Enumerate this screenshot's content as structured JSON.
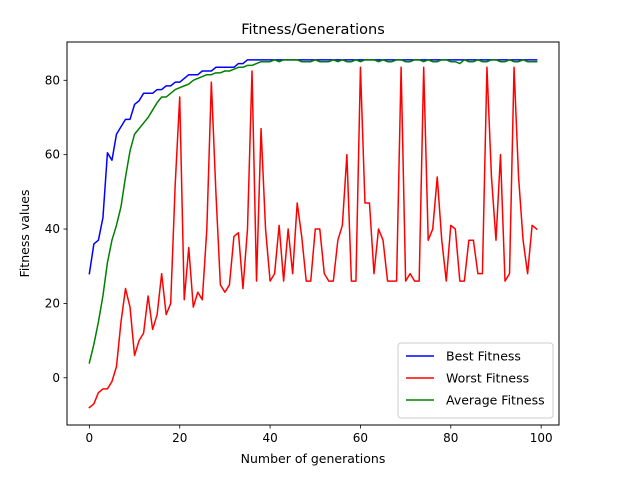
{
  "chart_data": {
    "type": "line",
    "title": "Fitness/Generations",
    "xlabel": "Number of generations",
    "ylabel": "Fitness values",
    "xlim": [
      -4.95,
      103.95
    ],
    "ylim": [
      -12.7,
      90.3
    ],
    "xticks": [
      0,
      20,
      40,
      60,
      80,
      100
    ],
    "yticks": [
      0,
      20,
      40,
      60,
      80
    ],
    "grid": false,
    "legend": "lower-right",
    "series": [
      {
        "name": "Best Fitness",
        "color": "#0000ff",
        "values": [
          28,
          36,
          37,
          43,
          60.5,
          58.5,
          65.5,
          67.5,
          69.5,
          69.5,
          73.5,
          74.5,
          76.5,
          76.5,
          76.5,
          77.5,
          77.5,
          78.5,
          78.5,
          79.5,
          79.5,
          80.5,
          81.5,
          81.5,
          81.5,
          82.5,
          82.5,
          82.5,
          83.5,
          83.5,
          83.5,
          83.5,
          83.5,
          84.5,
          84.5,
          85.5,
          85.5,
          85.5,
          85.5,
          85.5,
          85.5,
          85.5,
          85.5,
          85.5,
          85.5,
          85.5,
          85.5,
          85.5,
          85.5,
          85.5,
          85.5,
          85.5,
          85.5,
          85.5,
          85.5,
          85.5,
          85.5,
          85.5,
          85.5,
          85.5,
          85.5,
          85.5,
          85.5,
          85.5,
          85.5,
          85.5,
          85.5,
          85.5,
          85.5,
          85.5,
          85.5,
          85.5,
          85.5,
          85.5,
          85.5,
          85.5,
          85.5,
          85.5,
          85.5,
          85.5,
          85.5,
          85.5,
          85.5,
          85.5,
          85.5,
          85.5,
          85.5,
          85.5,
          85.5,
          85.5,
          85.5,
          85.5,
          85.5,
          85.5,
          85.5,
          85.5,
          85.5,
          85.5,
          85.5,
          85.5
        ]
      },
      {
        "name": "Worst Fitness",
        "color": "#ff0000",
        "values": [
          -8,
          -7,
          -4,
          -3,
          -3,
          -1,
          3,
          15,
          24,
          19,
          6,
          10,
          12,
          22,
          13,
          17,
          28,
          17,
          20,
          52,
          75.5,
          21,
          35,
          19,
          23,
          21,
          40,
          79.5,
          50,
          25,
          23,
          25,
          38,
          39,
          24,
          40,
          82.5,
          26,
          67,
          40,
          26,
          28,
          41,
          26,
          40,
          28,
          47,
          38,
          26,
          26,
          40,
          40,
          28,
          26,
          26,
          37,
          41,
          60,
          26,
          26,
          83.5,
          47,
          47,
          28,
          40,
          37,
          26,
          26,
          26,
          83.5,
          26,
          28,
          26,
          26,
          83.5,
          37,
          40,
          54,
          37,
          26,
          41,
          40,
          26,
          26,
          37,
          37,
          28,
          28,
          83.5,
          54,
          37,
          60,
          26,
          28,
          83.5,
          54,
          37,
          28,
          41,
          40
        ]
      },
      {
        "name": "Average Fitness",
        "color": "#008000",
        "values": [
          4,
          9,
          15,
          22,
          31,
          37,
          41,
          46,
          54,
          61,
          65.5,
          67,
          68.5,
          70,
          72,
          74,
          75.5,
          75.5,
          76.5,
          77.5,
          78,
          78.5,
          79,
          80,
          80.5,
          81,
          81.5,
          81.5,
          82,
          82,
          82.5,
          82.5,
          83,
          83.5,
          83.5,
          84,
          84,
          84.5,
          85,
          85,
          85,
          85.5,
          85,
          85.5,
          85.5,
          85.5,
          85.5,
          85,
          85,
          85,
          85.5,
          85,
          85,
          85,
          85.5,
          85,
          85.5,
          85,
          85,
          85.5,
          85,
          85.5,
          85.5,
          85.5,
          85,
          85.5,
          85,
          85,
          85.5,
          85.5,
          85,
          85,
          85.5,
          85.5,
          85,
          85.5,
          85,
          85,
          85.5,
          85.5,
          85,
          85,
          84.5,
          85.5,
          85,
          85,
          85.5,
          85,
          85,
          85.5,
          85.5,
          85,
          85,
          85.5,
          85,
          85,
          85.5,
          85,
          85,
          85
        ]
      }
    ]
  }
}
